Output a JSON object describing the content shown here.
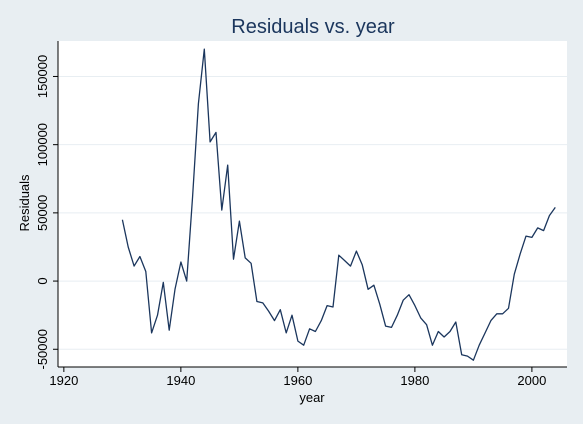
{
  "chart_data": {
    "type": "line",
    "title": "Residuals vs. year",
    "xlabel": "year",
    "ylabel": "Residuals",
    "xlim": [
      1919,
      2006
    ],
    "ylim": [
      -63000,
      176000
    ],
    "x_ticks": [
      1920,
      1940,
      1960,
      1980,
      2000
    ],
    "y_ticks": [
      -50000,
      0,
      50000,
      100000,
      150000
    ],
    "grid": "horizontal",
    "colors": {
      "background": "#e8eef2",
      "plot_area": "#ffffff",
      "line": "#1b365d",
      "grid": "#e8eef2",
      "title": "#1b365d"
    },
    "series": [
      {
        "x": [
          1930,
          1931,
          1932,
          1933,
          1934,
          1935,
          1936,
          1937,
          1938,
          1939,
          1940,
          1941,
          1942,
          1943,
          1944,
          1945,
          1946,
          1947,
          1948,
          1949,
          1950,
          1951,
          1952,
          1953,
          1954,
          1955,
          1956,
          1957,
          1958,
          1959,
          1960,
          1961,
          1962,
          1963,
          1964,
          1965,
          1966,
          1967,
          1968,
          1969,
          1970,
          1971,
          1972,
          1973,
          1974,
          1975,
          1976,
          1977,
          1978,
          1979,
          1980,
          1981,
          1982,
          1983,
          1984,
          1985,
          1986,
          1987,
          1988,
          1989,
          1990,
          1991,
          1992,
          1993,
          1994,
          1995,
          1996,
          1997,
          1998,
          1999,
          2000,
          2001,
          2002,
          2003,
          2004
        ],
        "y": [
          45000,
          25000,
          11000,
          18000,
          7000,
          -38000,
          -25000,
          -1000,
          -36000,
          -6000,
          14000,
          0,
          62000,
          130000,
          170000,
          102000,
          109000,
          52000,
          85000,
          16000,
          44000,
          17000,
          13000,
          -15000,
          -16000,
          -22000,
          -29000,
          -21000,
          -38000,
          -25000,
          -44000,
          -47000,
          -35000,
          -37000,
          -29000,
          -18000,
          -19000,
          19000,
          15000,
          11000,
          22000,
          12000,
          -6000,
          -3000,
          -17000,
          -33000,
          -34000,
          -25000,
          -14000,
          -10000,
          -18000,
          -27000,
          -32000,
          -47000,
          -37000,
          -41000,
          -37000,
          -30000,
          -54000,
          -55000,
          -58000,
          -47000,
          -38000,
          -29000,
          -24000,
          -24000,
          -20000,
          5000,
          20000,
          33000,
          32000,
          39000,
          37000,
          48000,
          54000
        ]
      }
    ]
  }
}
